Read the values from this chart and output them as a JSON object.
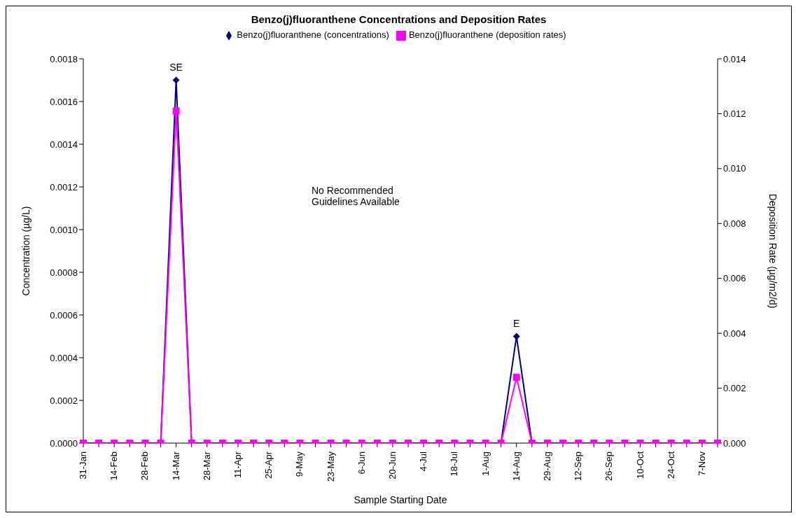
{
  "chart_data": {
    "type": "line",
    "title": "Benzo(j)fluoranthene Concentrations and Deposition Rates",
    "xlabel": "Sample Starting Date",
    "ylabel": "Concentration (µg/L)",
    "y2label": "Deposition Rate (µg/m2/d)",
    "categories": [
      "31-Jan",
      null,
      "14-Feb",
      null,
      "28-Feb",
      null,
      "14-Mar",
      null,
      "28-Mar",
      null,
      "11-Apr",
      null,
      "25-Apr",
      null,
      "9-May",
      null,
      "23-May",
      null,
      "6-Jun",
      null,
      "20-Jun",
      null,
      "4-Jul",
      null,
      "18-Jul",
      null,
      "1-Aug",
      null,
      "14-Aug",
      null,
      "29-Aug",
      null,
      "12-Sep",
      null,
      "26-Sep",
      null,
      "10-Oct",
      null,
      "24-Oct",
      null,
      "7-Nov",
      null
    ],
    "series": [
      {
        "name": "Benzo(j)fluoranthene (concentrations)",
        "color": "#000080",
        "marker": "diamond",
        "values": [
          null,
          null,
          null,
          null,
          null,
          0,
          0.0017,
          0,
          null,
          null,
          null,
          null,
          null,
          null,
          null,
          null,
          null,
          null,
          null,
          null,
          null,
          null,
          null,
          null,
          null,
          null,
          null,
          0,
          0.0005,
          0,
          null,
          null,
          null,
          null,
          null,
          null,
          null,
          null,
          null,
          null,
          null,
          null
        ]
      },
      {
        "name": "Benzo(j)fluoranthene (deposition rates)",
        "color": "#ff00ff",
        "marker": "square",
        "axis": "y2",
        "values": [
          0,
          0,
          0,
          0,
          0,
          0,
          0.0121,
          0,
          0,
          0,
          0,
          0,
          0,
          0,
          0,
          0,
          0,
          0,
          0,
          0,
          0,
          0,
          0,
          0,
          0,
          0,
          0,
          0,
          0.0024,
          0,
          0,
          0,
          0,
          0,
          0,
          0,
          0,
          0,
          0,
          0,
          0,
          0
        ]
      }
    ],
    "ylim": [
      0,
      0.0018
    ],
    "yticks": [
      {
        "value": 0,
        "label": "0.0000"
      },
      {
        "value": 0.0002,
        "label": "0.0002"
      },
      {
        "value": 0.0004,
        "label": "0.0004"
      },
      {
        "value": 0.0006,
        "label": "0.0006"
      },
      {
        "value": 0.0008,
        "label": "0.0008"
      },
      {
        "value": 0.001,
        "label": "0.0010"
      },
      {
        "value": 0.0012,
        "label": "0.0012"
      },
      {
        "value": 0.0014,
        "label": "0.0014"
      },
      {
        "value": 0.0016,
        "label": "0.0016"
      },
      {
        "value": 0.0018,
        "label": "0.0018"
      }
    ],
    "y2lim": [
      0,
      0.014
    ],
    "y2ticks": [
      {
        "value": 0,
        "label": "0.000"
      },
      {
        "value": 0.002,
        "label": "0.002"
      },
      {
        "value": 0.004,
        "label": "0.004"
      },
      {
        "value": 0.006,
        "label": "0.006"
      },
      {
        "value": 0.008,
        "label": "0.008"
      },
      {
        "value": 0.01,
        "label": "0.010"
      },
      {
        "value": 0.012,
        "label": "0.012"
      },
      {
        "value": 0.014,
        "label": "0.014"
      }
    ],
    "annotations": [
      {
        "text": "SE",
        "x": "14-Mar",
        "y": 0.0017
      },
      {
        "text": "E",
        "x": "14-Aug",
        "y": 0.0005
      },
      "No Recommended Guidelines Available"
    ],
    "legend": "top",
    "grid": false
  }
}
